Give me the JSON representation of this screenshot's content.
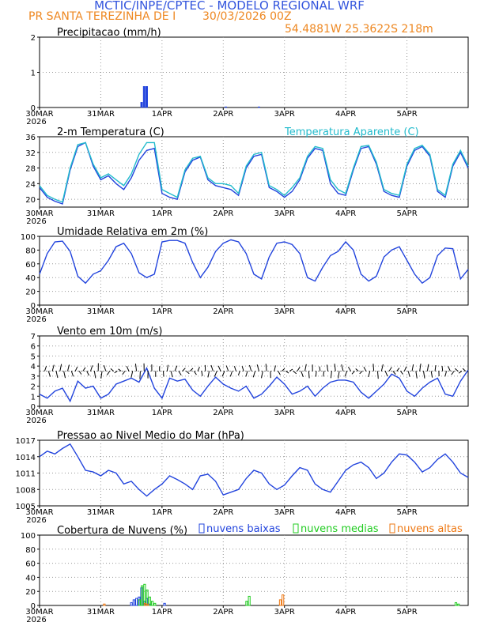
{
  "header": {
    "title": "MCTIC/INPE/CPTEC - MODELO REGIONAL WRF",
    "location": "PR SANTA TEREZINHA DE I",
    "run": "30/03/2026 00Z",
    "coords": "54.4881W 25.3622S 218m"
  },
  "x_axis": {
    "ticks": [
      "30MAR",
      "31MAR",
      "1APR",
      "2APR",
      "3APR",
      "4APR",
      "5APR"
    ],
    "year": "2026",
    "range_hours": [
      0,
      168
    ]
  },
  "colors": {
    "blue": "#2244dd",
    "cyan": "#22bbcc",
    "green": "#22cc22",
    "orange": "#ee7711",
    "grid": "#999999",
    "title": "#3355dd",
    "header_orange": "#ee8822"
  },
  "chart_data": [
    {
      "type": "bar",
      "title": "Precipitacao (mm/h)",
      "ylim": [
        0,
        2
      ],
      "yticks": [
        "0",
        "1",
        "2"
      ],
      "x": [
        40,
        41,
        42,
        73,
        86
      ],
      "values": [
        0.15,
        0.6,
        0.6,
        0.02,
        0.02
      ]
    },
    {
      "type": "line",
      "title": "2-m Temperatura (C)",
      "legend": "Temperatura Aparente (C)",
      "ylim": [
        18,
        36
      ],
      "yticks": [
        "20",
        "24",
        "28",
        "32",
        "36"
      ],
      "series": [
        {
          "name": "2-m Temperatura (C)",
          "x": [
            0,
            3,
            6,
            9,
            12,
            15,
            18,
            21,
            24,
            27,
            30,
            33,
            36,
            39,
            42,
            45,
            48,
            51,
            54,
            57,
            60,
            63,
            66,
            69,
            72,
            75,
            78,
            81,
            84,
            87,
            90,
            93,
            96,
            99,
            102,
            105,
            108,
            111,
            114,
            117,
            120,
            123,
            126,
            129,
            132,
            135,
            138,
            141,
            144,
            147,
            150,
            153,
            156,
            159,
            162,
            165,
            168
          ],
          "values": [
            23,
            20.5,
            19.5,
            18.8,
            27.5,
            33.5,
            34.5,
            28.5,
            25,
            26,
            24,
            22.5,
            25.5,
            30,
            32.5,
            33,
            21.5,
            20.5,
            20,
            27,
            30,
            30.8,
            25,
            23.5,
            23,
            22.5,
            21,
            28,
            31,
            31.5,
            23,
            22,
            20.5,
            22,
            25,
            30.5,
            33,
            32.5,
            24,
            21.5,
            21,
            27.5,
            33,
            33.5,
            29,
            22,
            21,
            20.5,
            28.5,
            32.5,
            33.5,
            31,
            22,
            20.5,
            28.5,
            32,
            28
          ]
        },
        {
          "name": "Temperatura Aparente (C)",
          "x": [
            0,
            3,
            6,
            9,
            12,
            15,
            18,
            21,
            24,
            27,
            30,
            33,
            36,
            39,
            42,
            45,
            48,
            51,
            54,
            57,
            60,
            63,
            66,
            69,
            72,
            75,
            78,
            81,
            84,
            87,
            90,
            93,
            96,
            99,
            102,
            105,
            108,
            111,
            114,
            117,
            120,
            123,
            126,
            129,
            132,
            135,
            138,
            141,
            144,
            147,
            150,
            153,
            156,
            159,
            162,
            165,
            168
          ],
          "values": [
            23.5,
            21,
            20,
            19.3,
            28,
            34,
            34.5,
            29,
            25.5,
            26.5,
            25,
            23.5,
            26.5,
            31.5,
            34.5,
            34.5,
            22.5,
            21.5,
            20.5,
            27.5,
            30.5,
            31,
            25.5,
            24,
            24,
            23.5,
            21.5,
            28.5,
            31.5,
            32,
            23.5,
            22.5,
            21,
            23,
            25.5,
            31,
            33.5,
            33,
            25,
            22.5,
            21.5,
            28,
            33.5,
            33.8,
            29.5,
            22.5,
            21.5,
            21,
            29,
            33,
            33.8,
            31.5,
            22.5,
            21,
            29,
            32.5,
            28.5
          ]
        }
      ]
    },
    {
      "type": "line",
      "title": "Umidade Relativa em 2m (%)",
      "ylim": [
        0,
        100
      ],
      "yticks": [
        "0",
        "20",
        "40",
        "60",
        "80",
        "100"
      ],
      "series": [
        {
          "name": "Umidade Relativa em 2m (%)",
          "x": [
            0,
            3,
            6,
            9,
            12,
            15,
            18,
            21,
            24,
            27,
            30,
            33,
            36,
            39,
            42,
            45,
            48,
            51,
            54,
            57,
            60,
            63,
            66,
            69,
            72,
            75,
            78,
            81,
            84,
            87,
            90,
            93,
            96,
            99,
            102,
            105,
            108,
            111,
            114,
            117,
            120,
            123,
            126,
            129,
            132,
            135,
            138,
            141,
            144,
            147,
            150,
            153,
            156,
            159,
            162,
            165,
            168
          ],
          "values": [
            45,
            75,
            92,
            93,
            78,
            42,
            32,
            45,
            50,
            65,
            85,
            90,
            75,
            47,
            40,
            45,
            92,
            94,
            94,
            90,
            62,
            40,
            55,
            78,
            90,
            95,
            92,
            75,
            45,
            38,
            70,
            90,
            92,
            88,
            75,
            40,
            35,
            55,
            72,
            78,
            92,
            80,
            45,
            35,
            42,
            70,
            80,
            85,
            65,
            45,
            32,
            40,
            72,
            83,
            82,
            38,
            52
          ]
        }
      ]
    },
    {
      "type": "line",
      "title": "Vento em 10m (m/s)",
      "ylim": [
        0,
        7
      ],
      "yticks": [
        "0",
        "1",
        "2",
        "3",
        "4",
        "5",
        "6",
        "7"
      ],
      "series": [
        {
          "name": "Vento em 10m (m/s)",
          "x": [
            0,
            3,
            6,
            9,
            12,
            15,
            18,
            21,
            24,
            27,
            30,
            33,
            36,
            39,
            42,
            45,
            48,
            51,
            54,
            57,
            60,
            63,
            66,
            69,
            72,
            75,
            78,
            81,
            84,
            87,
            90,
            93,
            96,
            99,
            102,
            105,
            108,
            111,
            114,
            117,
            120,
            123,
            126,
            129,
            132,
            135,
            138,
            141,
            144,
            147,
            150,
            153,
            156,
            159,
            162,
            165,
            168
          ],
          "values": [
            1.2,
            0.8,
            1.5,
            1.8,
            0.5,
            2.5,
            1.8,
            2.0,
            0.8,
            1.2,
            2.2,
            2.5,
            2.8,
            2.4,
            3.8,
            1.8,
            0.8,
            2.8,
            2.5,
            2.7,
            1.6,
            1.0,
            2.0,
            2.9,
            2.2,
            1.8,
            1.5,
            2.0,
            0.8,
            1.2,
            2.0,
            2.9,
            2.2,
            1.2,
            1.5,
            2.0,
            1.0,
            1.8,
            2.4,
            2.6,
            2.6,
            2.4,
            1.4,
            0.8,
            1.5,
            2.2,
            3.2,
            2.8,
            1.5,
            1.0,
            1.8,
            2.4,
            2.8,
            1.2,
            1.0,
            2.5,
            3.6
          ]
        }
      ],
      "barbs_y": 3.5
    },
    {
      "type": "line",
      "title": "Pressao ao Nivel Medio do Mar (hPa)",
      "ylim": [
        1005,
        1017
      ],
      "yticks": [
        "1005",
        "1008",
        "1011",
        "1014",
        "1017"
      ],
      "series": [
        {
          "name": "Pressao ao Nivel Medio do Mar (hPa)",
          "x": [
            0,
            3,
            6,
            9,
            12,
            15,
            18,
            21,
            24,
            27,
            30,
            33,
            36,
            39,
            42,
            45,
            48,
            51,
            54,
            57,
            60,
            63,
            66,
            69,
            72,
            75,
            78,
            81,
            84,
            87,
            90,
            93,
            96,
            99,
            102,
            105,
            108,
            111,
            114,
            117,
            120,
            123,
            126,
            129,
            132,
            135,
            138,
            141,
            144,
            147,
            150,
            153,
            156,
            159,
            162,
            165,
            168
          ],
          "values": [
            1014,
            1015,
            1014.5,
            1015.5,
            1016.3,
            1014,
            1011.5,
            1011.2,
            1010.5,
            1011.5,
            1011,
            1009,
            1009.5,
            1008,
            1006.8,
            1008,
            1009,
            1010.5,
            1009.8,
            1009,
            1008,
            1010.5,
            1010.8,
            1009.5,
            1007,
            1007.5,
            1008,
            1010,
            1011.5,
            1011,
            1009,
            1008,
            1008.8,
            1010.5,
            1012,
            1011.5,
            1009,
            1008,
            1007.5,
            1009.5,
            1011.5,
            1012.5,
            1013,
            1012,
            1010,
            1011,
            1013,
            1014.5,
            1014.3,
            1013,
            1011.2,
            1012,
            1013.5,
            1014.5,
            1013,
            1011,
            1010.2
          ]
        }
      ]
    },
    {
      "type": "bar",
      "title": "Cobertura de Nuvens (%)",
      "ylim": [
        0,
        100
      ],
      "yticks": [
        "0",
        "20",
        "40",
        "60",
        "80",
        "100"
      ],
      "legend": [
        "nuvens baixas",
        "nuvens medias",
        "nuvens altas"
      ],
      "series": [
        {
          "name": "nuvens baixas",
          "x": [
            36,
            37,
            38,
            39,
            40,
            41,
            42,
            43,
            49
          ],
          "values": [
            4,
            8,
            10,
            12,
            25,
            6,
            10,
            2,
            3
          ]
        },
        {
          "name": "nuvens medias",
          "x": [
            39,
            40,
            41,
            42,
            43,
            44,
            45,
            81,
            82,
            163,
            164
          ],
          "values": [
            8,
            28,
            30,
            22,
            12,
            6,
            3,
            6,
            13,
            4,
            2
          ]
        },
        {
          "name": "nuvens altas",
          "x": [
            25,
            41,
            42,
            94,
            95
          ],
          "values": [
            2,
            3,
            2,
            8,
            15
          ]
        }
      ]
    }
  ]
}
